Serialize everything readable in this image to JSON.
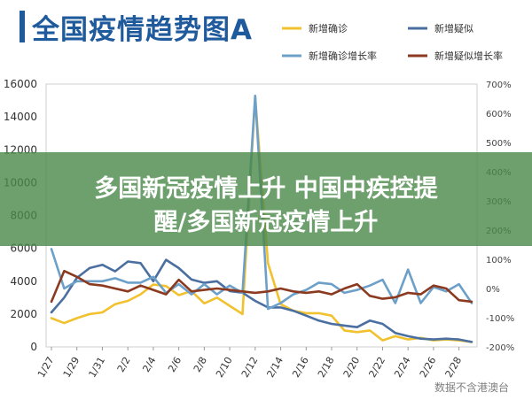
{
  "page_title": "全国疫情趋势图A",
  "banner": {
    "line1": "多国新冠疫情上升 中国中疾控提",
    "line2": "醒/多国新冠疫情上升"
  },
  "source": "数据不含港澳台",
  "chart_data": {
    "type": "line",
    "title": "全国疫情趋势图A",
    "x": [
      "1/27",
      "1/28",
      "1/29",
      "1/30",
      "1/31",
      "2/1",
      "2/2",
      "2/3",
      "2/4",
      "2/5",
      "2/6",
      "2/7",
      "2/8",
      "2/9",
      "2/10",
      "2/11",
      "2/12",
      "2/13",
      "2/14",
      "2/15",
      "2/16",
      "2/17",
      "2/18",
      "2/19",
      "2/20",
      "2/21",
      "2/22",
      "2/23",
      "2/24",
      "2/25",
      "2/26",
      "2/27",
      "2/28",
      "2/29"
    ],
    "x_tick_labels": [
      "1/27",
      "1/29",
      "1/31",
      "2/2",
      "2/4",
      "2/6",
      "2/8",
      "2/10",
      "2/12",
      "2/14",
      "2/16",
      "2/18",
      "2/20",
      "2/22",
      "2/24",
      "2/26",
      "2/28"
    ],
    "y_left": {
      "ticks": [
        "0",
        "2000",
        "4000",
        "6000",
        "8000",
        "10000",
        "12000",
        "14000",
        "16000"
      ],
      "range": [
        0,
        16000
      ]
    },
    "y_right": {
      "ticks": [
        "-200%",
        "-100%",
        "0%",
        "100%",
        "200%",
        "300%",
        "400%",
        "500%",
        "600%",
        "700%"
      ],
      "range": [
        -200,
        700
      ]
    },
    "legend_position": "top-right",
    "series": [
      {
        "name": "新增确诊",
        "color": "#f2c12e",
        "axis": "left",
        "values": [
          1750,
          1450,
          1750,
          2000,
          2100,
          2600,
          2800,
          3200,
          3800,
          3700,
          3150,
          3400,
          2650,
          3000,
          2500,
          2000,
          15200,
          5100,
          2600,
          2200,
          2050,
          2050,
          1900,
          1000,
          900,
          1000,
          400,
          650,
          450,
          550,
          400,
          450,
          400,
          300
        ]
      },
      {
        "name": "新增疑似",
        "color": "#4a6fa0",
        "axis": "left",
        "values": [
          2100,
          3000,
          4200,
          4800,
          5000,
          4600,
          5200,
          5100,
          4000,
          5300,
          4800,
          4100,
          3900,
          4000,
          3400,
          3300,
          2800,
          2400,
          2400,
          2200,
          1900,
          1600,
          1400,
          1300,
          1200,
          1600,
          1400,
          850,
          650,
          500,
          450,
          500,
          450,
          300
        ]
      },
      {
        "name": "新增确诊增长率",
        "color": "#6da0c8",
        "axis": "right",
        "values": [
          135,
          0,
          25,
          25,
          25,
          35,
          20,
          20,
          40,
          -15,
          15,
          -20,
          15,
          -20,
          10,
          -15,
          660,
          -70,
          -50,
          -20,
          -5,
          20,
          15,
          -15,
          -5,
          10,
          30,
          -50,
          65,
          -50,
          5,
          -10,
          15,
          -50
        ]
      },
      {
        "name": "新增疑似增长率",
        "color": "#8b3a1f",
        "axis": "right",
        "values": [
          -45,
          60,
          40,
          15,
          10,
          0,
          -10,
          10,
          -5,
          -20,
          30,
          -10,
          -5,
          0,
          -5,
          -10,
          -15,
          -10,
          0,
          -10,
          -15,
          -10,
          -20,
          0,
          15,
          -25,
          -35,
          -30,
          -15,
          -20,
          10,
          0,
          -40,
          -45
        ]
      }
    ]
  }
}
